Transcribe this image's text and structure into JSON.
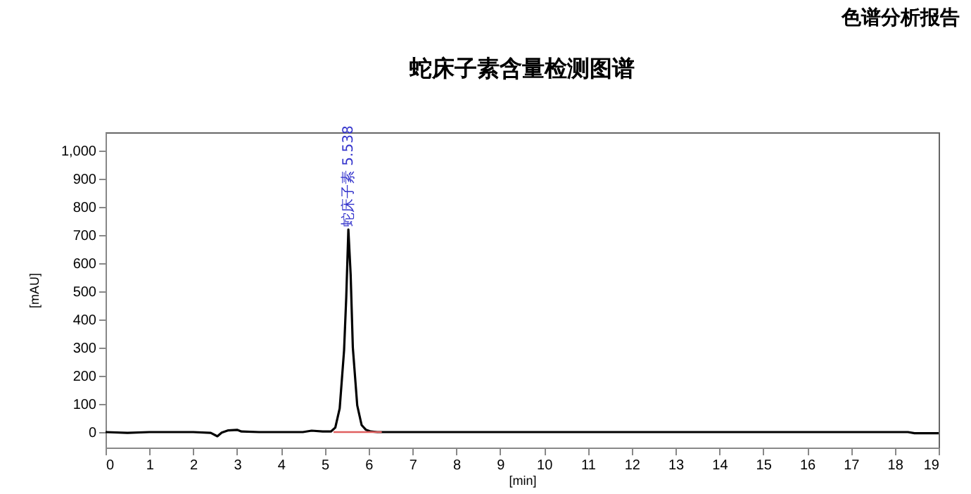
{
  "chart_data": {
    "type": "line",
    "title": "蛇床子素含量检测图谱",
    "xlabel": "[min]",
    "ylabel": "[mAU]",
    "annotations": [
      "色谱分析报告",
      {
        "text": "蛇床子素 5.538",
        "x": 5.538,
        "y": 720
      }
    ],
    "x": [
      0,
      0.5,
      1,
      2,
      2.4,
      2.55,
      2.65,
      2.8,
      3.0,
      3.1,
      3.5,
      4.5,
      4.7,
      4.95,
      5.14,
      5.24,
      5.34,
      5.44,
      5.49,
      5.538,
      5.59,
      5.64,
      5.74,
      5.84,
      5.94,
      6.05,
      6.2,
      7,
      10,
      15,
      18.3,
      18.45,
      19
    ],
    "series": [
      {
        "color": "#000000",
        "values": [
          0,
          -3,
          0,
          0,
          -3,
          -15,
          -2,
          6,
          8,
          2,
          0,
          0,
          5,
          2,
          2,
          16,
          84,
          290,
          480,
          720,
          560,
          300,
          95,
          25,
          8,
          2,
          0,
          0,
          0,
          0,
          0,
          -4,
          -4
        ]
      },
      {
        "type": "line",
        "color": "#e06060",
        "x": [
          5.2,
          6.3
        ],
        "values": [
          0,
          0
        ]
      }
    ],
    "xlim": [
      0,
      19
    ],
    "xticks": [
      0,
      1,
      2,
      3,
      4,
      5,
      6,
      7,
      8,
      9,
      10,
      11,
      12,
      13,
      14,
      15,
      16,
      17,
      18,
      19
    ],
    "ylim": [
      -55,
      1065
    ],
    "yticks": [
      0,
      100,
      200,
      300,
      400,
      500,
      600,
      700,
      800,
      900,
      {
        "value": 1000,
        "label": "1,000"
      }
    ],
    "grid": false,
    "marker": "none",
    "line_style": "solid"
  }
}
